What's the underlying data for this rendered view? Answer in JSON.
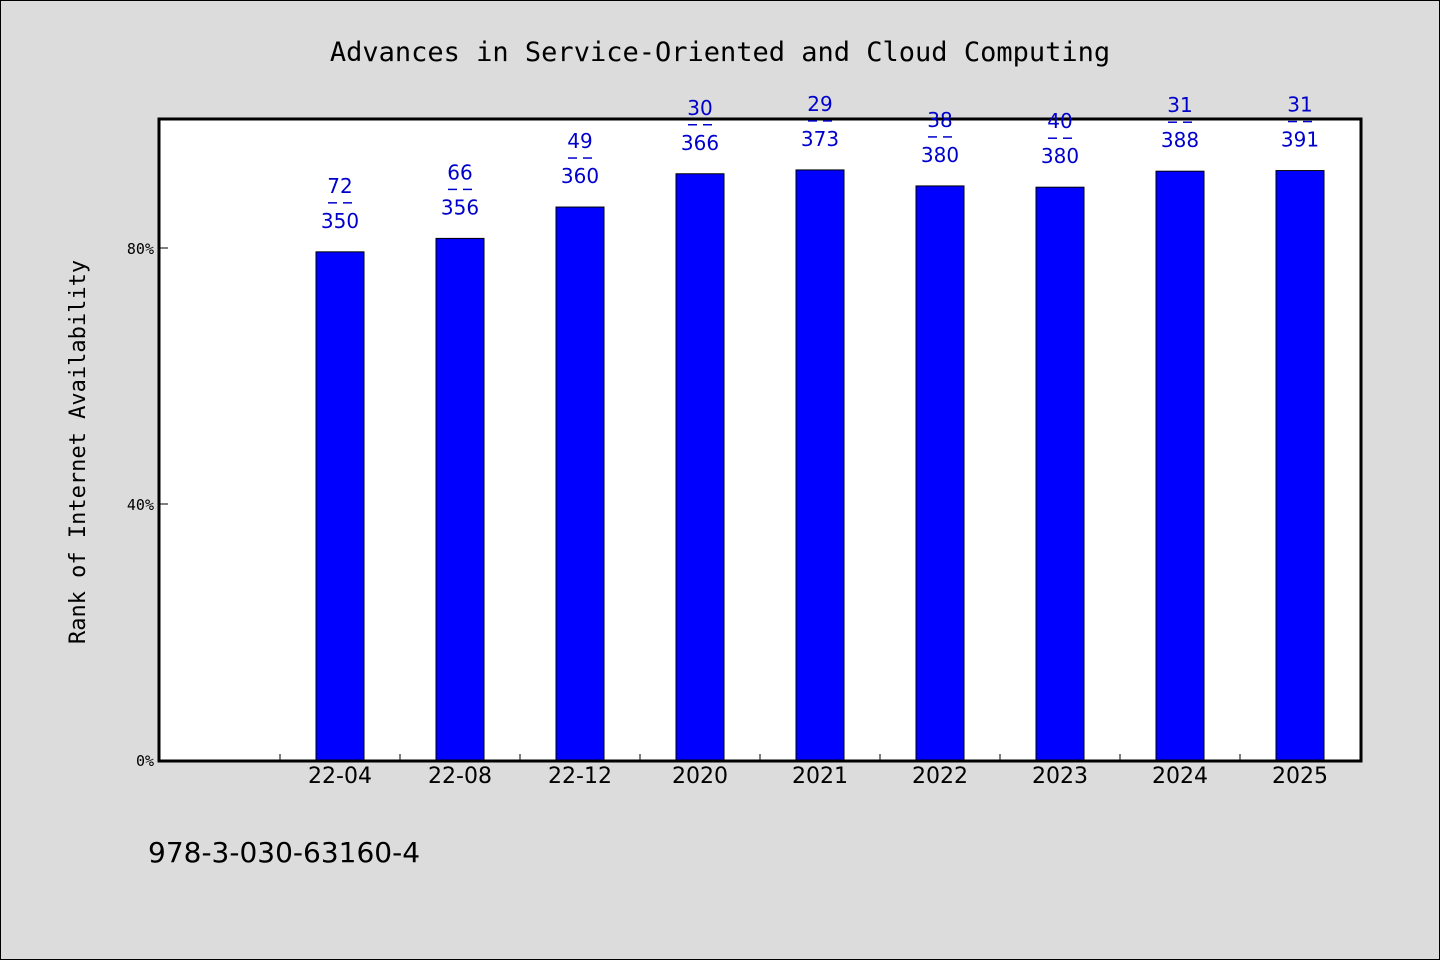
{
  "chart_data": {
    "type": "bar",
    "title": "Advances in Service-Oriented and Cloud Computing",
    "xlabel": "",
    "ylabel": "Rank of Internet Availability",
    "categories": [
      "22-04",
      "22-08",
      "22-12",
      "2020",
      "2021",
      "2022",
      "2023",
      "2024",
      "2025"
    ],
    "series": [
      {
        "values": [
          0.794,
          0.815,
          0.864,
          0.916,
          0.922,
          0.897,
          0.895,
          0.92,
          0.921
        ]
      }
    ],
    "bar_labels": [
      {
        "top": "72",
        "bottom": "350"
      },
      {
        "top": "66",
        "bottom": "356"
      },
      {
        "top": "49",
        "bottom": "360"
      },
      {
        "top": "30",
        "bottom": "366"
      },
      {
        "top": "29",
        "bottom": "373"
      },
      {
        "top": "38",
        "bottom": "380"
      },
      {
        "top": "40",
        "bottom": "380"
      },
      {
        "top": "31",
        "bottom": "388"
      },
      {
        "top": "31",
        "bottom": "391"
      }
    ],
    "y_ticks": [
      {
        "value": 0,
        "label": "0%"
      },
      {
        "value": 0.4,
        "label": "40%"
      },
      {
        "value": 0.8,
        "label": "80%"
      }
    ],
    "ylim": [
      0,
      1.0
    ],
    "grid": false,
    "legend": "none",
    "colors": {
      "bar": "#0000ff",
      "label": "#0000cc",
      "background": "#dcdcdc",
      "plot": "#ffffff"
    }
  },
  "footer": {
    "isbn": "978-3-030-63160-4"
  }
}
